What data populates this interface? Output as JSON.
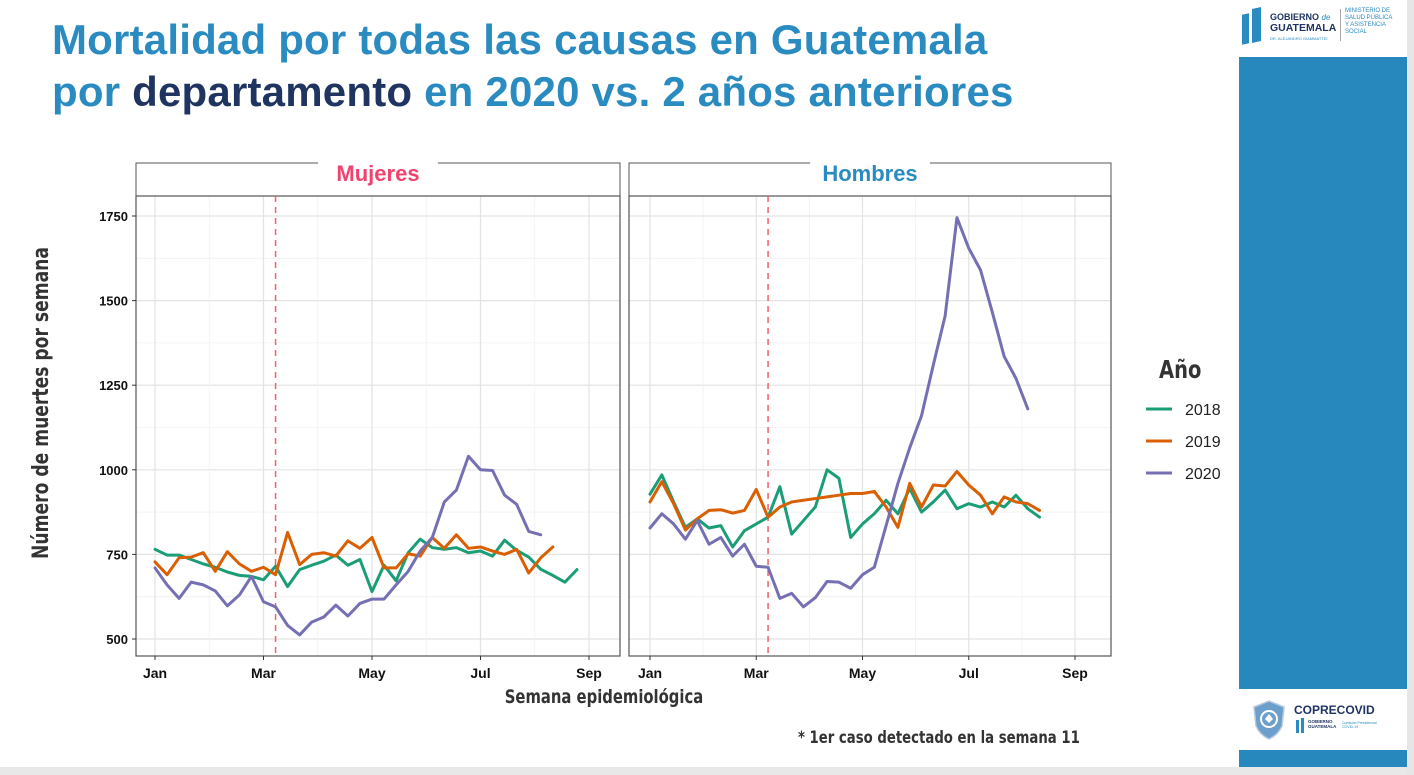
{
  "slide": {
    "title_line1": "Mortalidad por todas las causas en Guatemala",
    "title_line2_part1": "por ",
    "title_line2_part2": "departamento",
    "title_line2_part3": " en 2020 vs. 2 años anteriores",
    "footnote": "* 1er caso detectado en la semana 11",
    "colors": {
      "title_blue": "#2a8bc0",
      "title_dark": "#1f3461",
      "sidebar_blue": "#2788bd"
    }
  },
  "logos": {
    "top": {
      "gobierno": "GOBIERNO",
      "de": "de",
      "guatemala": "GUATEMALA",
      "subtitle": "DR. ALEJANDRO GIAMMATTEI",
      "ministry_l1": "MINISTERIO DE",
      "ministry_l2": "SALUD PÚBLICA",
      "ministry_l3": "Y ASISTENCIA",
      "ministry_l4": "SOCIAL"
    },
    "bottom": {
      "name": "COPRECOVID",
      "gobierno": "GOBIERNO",
      "guatemala": "GUATEMALA",
      "subtitle": "Comisión Presidencial COVID-19"
    }
  },
  "chart_data": {
    "type": "line",
    "ylabel": "Número de muertes por semana",
    "xlabel": "Semana epidemiológica",
    "legend_title": "Año",
    "legend_position": "right",
    "grid": true,
    "x_unit": "semana epidemiológica",
    "xlim": [
      -0.5,
      39.5
    ],
    "ylim": [
      450,
      1800
    ],
    "x_ticks": [
      {
        "label": "Jan",
        "week": 0
      },
      {
        "label": "Mar",
        "week": 9
      },
      {
        "label": "May",
        "week": 18
      },
      {
        "label": "Jul",
        "week": 27
      },
      {
        "label": "Sep",
        "week": 36
      }
    ],
    "y_ticks": [
      500,
      750,
      1000,
      1250,
      1500,
      1750
    ],
    "vline": {
      "week": 10,
      "color": "#f0606e",
      "style": "dashed",
      "note": "1er caso detectado en la semana 11"
    },
    "series_colors": {
      "2018": "#1b9e77",
      "2019": "#d95f02",
      "2020": "#7570b3"
    },
    "facets": [
      {
        "name": "Mujeres",
        "title_color": "#f0426f",
        "series": [
          {
            "name": "2018",
            "values": [
              765,
              748,
              748,
              735,
              722,
              712,
              698,
              688,
              685,
              675,
              715,
              655,
              705,
              718,
              730,
              748,
              718,
              735,
              640,
              718,
              672,
              755,
              795,
              770,
              765,
              770,
              755,
              760,
              745,
              792,
              762,
              742,
              706,
              688,
              668,
              705
            ]
          },
          {
            "name": "2019",
            "values": [
              728,
              690,
              740,
              742,
              755,
              700,
              758,
              722,
              700,
              712,
              690,
              815,
              720,
              750,
              755,
              745,
              790,
              768,
              800,
              710,
              710,
              752,
              745,
              800,
              768,
              808,
              768,
              772,
              760,
              750,
              765,
              695,
              740,
              772
            ]
          },
          {
            "name": "2020",
            "values": [
              710,
              660,
              620,
              668,
              660,
              642,
              598,
              630,
              685,
              610,
              595,
              540,
              512,
              550,
              565,
              600,
              568,
              605,
              618,
              618,
              660,
              700,
              760,
              800,
              905,
              940,
              1040,
              1000,
              998,
              925,
              898,
              818,
              808
            ]
          }
        ]
      },
      {
        "name": "Hombres",
        "title_color": "#2a8bc0",
        "series": [
          {
            "name": "2018",
            "values": [
              928,
              985,
              905,
              830,
              855,
              828,
              835,
              772,
              820,
              840,
              860,
              950,
              810,
              850,
              890,
              1000,
              975,
              800,
              840,
              870,
              910,
              870,
              945,
              875,
              905,
              940,
              885,
              900,
              890,
              905,
              890,
              925,
              885,
              860
            ]
          },
          {
            "name": "2019",
            "values": [
              905,
              965,
              900,
              822,
              855,
              880,
              882,
              872,
              880,
              942,
              860,
              890,
              905,
              910,
              915,
              920,
              925,
              930,
              930,
              936,
              890,
              830,
              960,
              890,
              955,
              952,
              995,
              955,
              925,
              870,
              920,
              905,
              900,
              880
            ]
          },
          {
            "name": "2020",
            "values": [
              828,
              870,
              840,
              795,
              850,
              780,
              800,
              745,
              780,
              715,
              712,
              620,
              635,
              595,
              622,
              670,
              668,
              650,
              690,
              712,
              835,
              960,
              1065,
              1160,
              1310,
              1455,
              1745,
              1655,
              1590,
              1465,
              1335,
              1270,
              1180
            ]
          }
        ]
      }
    ]
  }
}
